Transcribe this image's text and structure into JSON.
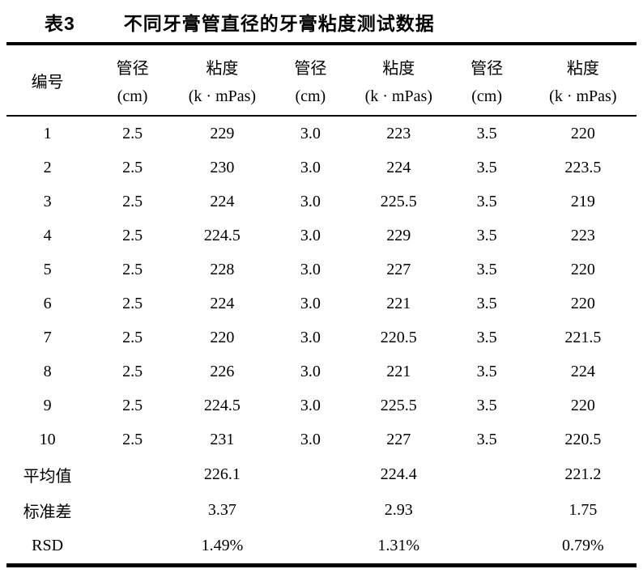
{
  "caption": {
    "label": "表3",
    "title": "不同牙膏管直径的牙膏粘度测试数据"
  },
  "table": {
    "header": {
      "row_header": "编号",
      "cols": [
        {
          "line1": "管径",
          "line2": "(cm)"
        },
        {
          "line1": "粘度",
          "line2": "(k · mPas)"
        },
        {
          "line1": "管径",
          "line2": "(cm)"
        },
        {
          "line1": "粘度",
          "line2": "(k · mPas)"
        },
        {
          "line1": "管径",
          "line2": "(cm)"
        },
        {
          "line1": "粘度",
          "line2": "(k · mPas)"
        }
      ]
    },
    "rows": [
      [
        "1",
        "2.5",
        "229",
        "3.0",
        "223",
        "3.5",
        "220"
      ],
      [
        "2",
        "2.5",
        "230",
        "3.0",
        "224",
        "3.5",
        "223.5"
      ],
      [
        "3",
        "2.5",
        "224",
        "3.0",
        "225.5",
        "3.5",
        "219"
      ],
      [
        "4",
        "2.5",
        "224.5",
        "3.0",
        "229",
        "3.5",
        "223"
      ],
      [
        "5",
        "2.5",
        "228",
        "3.0",
        "227",
        "3.5",
        "220"
      ],
      [
        "6",
        "2.5",
        "224",
        "3.0",
        "221",
        "3.5",
        "220"
      ],
      [
        "7",
        "2.5",
        "220",
        "3.0",
        "220.5",
        "3.5",
        "221.5"
      ],
      [
        "8",
        "2.5",
        "226",
        "3.0",
        "221",
        "3.5",
        "224"
      ],
      [
        "9",
        "2.5",
        "224.5",
        "3.0",
        "225.5",
        "3.5",
        "220"
      ],
      [
        "10",
        "2.5",
        "231",
        "3.0",
        "227",
        "3.5",
        "220.5"
      ]
    ],
    "summary_rows": [
      [
        "平均值",
        "",
        "226.1",
        "",
        "224.4",
        "",
        "221.2"
      ],
      [
        "标准差",
        "",
        "3.37",
        "",
        "2.93",
        "",
        "1.75"
      ],
      [
        "RSD",
        "",
        "1.49%",
        "",
        "1.31%",
        "",
        "0.79%"
      ]
    ]
  },
  "colors": {
    "text": "#000000",
    "background": "#ffffff",
    "rule": "#000000"
  }
}
